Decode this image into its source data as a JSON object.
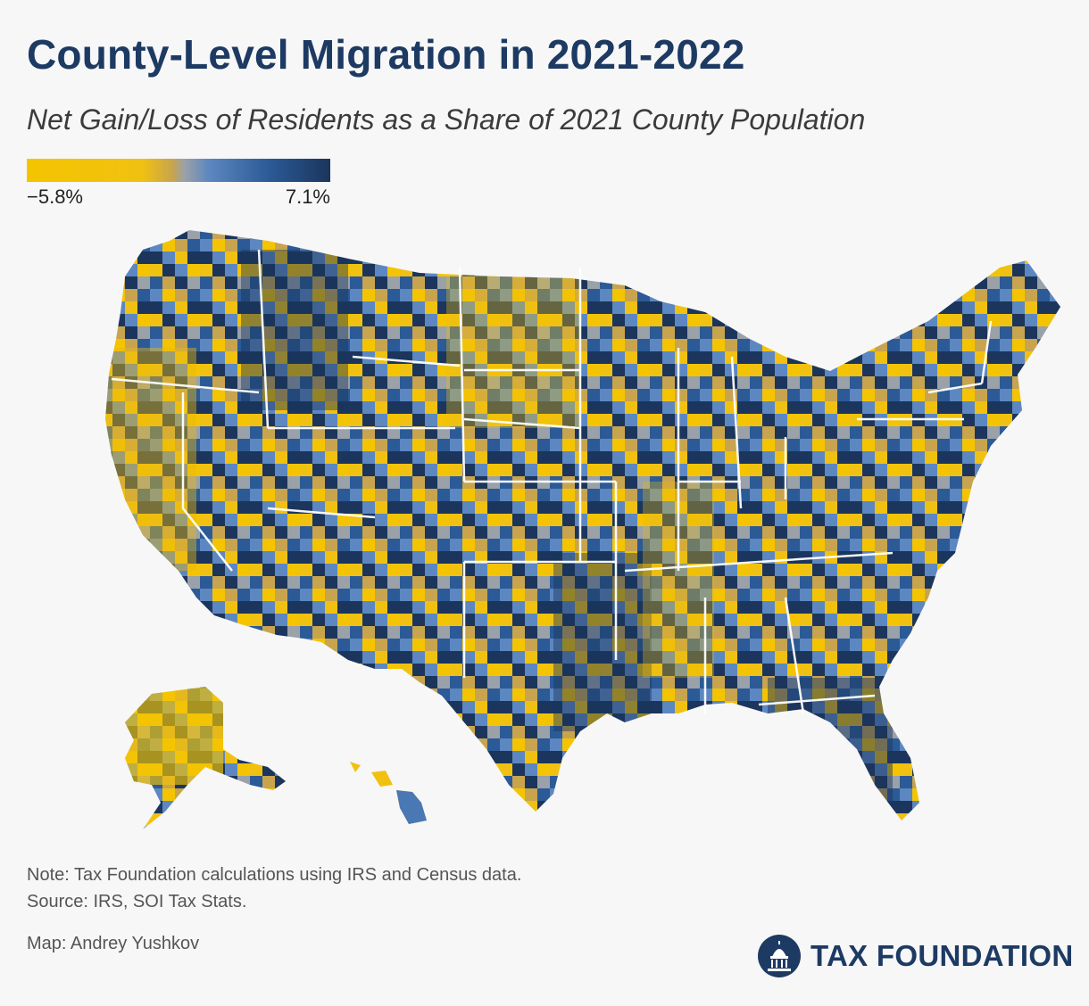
{
  "header": {
    "title": "County-Level Migration in 2021-2022",
    "subtitle": "Net Gain/Loss of Residents as a Share of 2021 County Population"
  },
  "legend": {
    "min_label": "−5.8%",
    "max_label": "7.1%",
    "min_value": -5.8,
    "max_value": 7.1,
    "colors": {
      "loss": "#f5c400",
      "neutral": "#9aa1a9",
      "gain": "#1b355c"
    }
  },
  "footer": {
    "note": "Note: Tax Foundation calculations using IRS and Census data.",
    "source": "Source: IRS, SOI Tax Stats.",
    "credit": "Map: Andrey Yushkov",
    "brand": "TAX FOUNDATION",
    "brand_icon": "capitol-dome-icon"
  }
}
